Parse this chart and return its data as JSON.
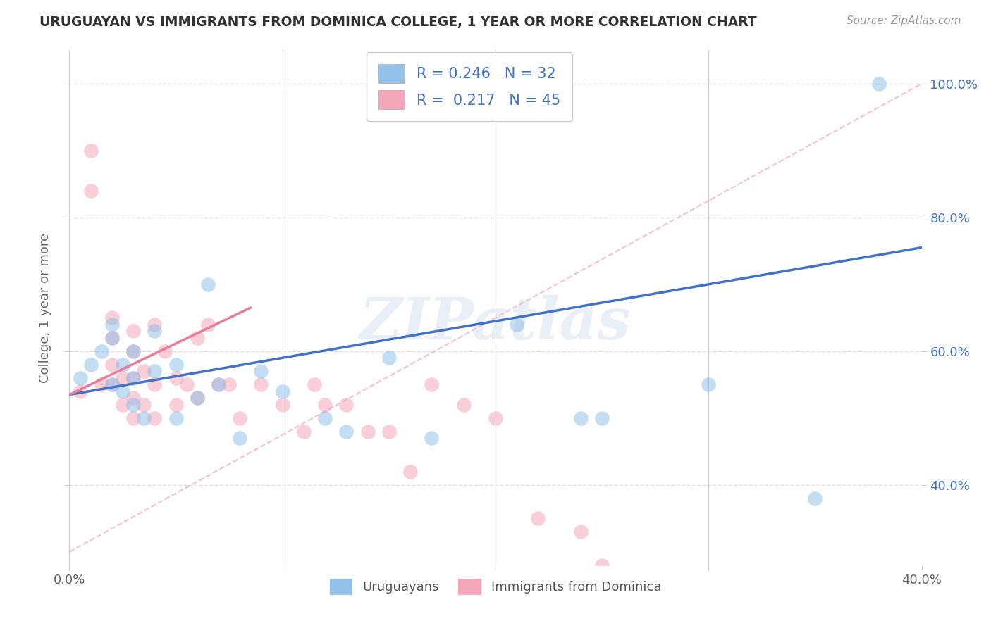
{
  "title": "URUGUAYAN VS IMMIGRANTS FROM DOMINICA COLLEGE, 1 YEAR OR MORE CORRELATION CHART",
  "source_text": "Source: ZipAtlas.com",
  "ylabel": "College, 1 year or more",
  "xlabel": "",
  "xlim": [
    0.0,
    0.4
  ],
  "ylim": [
    0.28,
    1.05
  ],
  "xticks": [
    0.0,
    0.1,
    0.2,
    0.3,
    0.4
  ],
  "xticklabels": [
    "0.0%",
    "",
    "",
    "",
    "40.0%"
  ],
  "yticks": [
    0.4,
    0.6,
    0.8,
    1.0
  ],
  "yticklabels_left": [
    "40.0%",
    "60.0%",
    "80.0%",
    "100.0%"
  ],
  "yticklabels_right": [
    "40.0%",
    "60.0%",
    "80.0%",
    "100.0%"
  ],
  "watermark": "ZIPatlas",
  "legend_blue_label": "Uruguayans",
  "legend_pink_label": "Immigrants from Dominica",
  "legend_blue_R": "0.246",
  "legend_blue_N": "32",
  "legend_pink_R": "0.217",
  "legend_pink_N": "45",
  "blue_color": "#92C1E9",
  "pink_color": "#F4A7B9",
  "blue_line_color": "#4472C4",
  "pink_line_color": "#E87D9A",
  "diag_line_color": "#F4A7B9",
  "background_color": "#FFFFFF",
  "blue_scatter_x": [
    0.005,
    0.01,
    0.015,
    0.02,
    0.02,
    0.02,
    0.025,
    0.025,
    0.03,
    0.03,
    0.03,
    0.035,
    0.04,
    0.04,
    0.05,
    0.05,
    0.06,
    0.065,
    0.07,
    0.08,
    0.09,
    0.1,
    0.12,
    0.13,
    0.15,
    0.17,
    0.21,
    0.24,
    0.25,
    0.3,
    0.35,
    0.38
  ],
  "blue_scatter_y": [
    0.56,
    0.58,
    0.6,
    0.55,
    0.62,
    0.64,
    0.54,
    0.58,
    0.52,
    0.56,
    0.6,
    0.5,
    0.57,
    0.63,
    0.5,
    0.58,
    0.53,
    0.7,
    0.55,
    0.47,
    0.57,
    0.54,
    0.5,
    0.48,
    0.59,
    0.47,
    0.64,
    0.5,
    0.5,
    0.55,
    0.38,
    1.0
  ],
  "pink_scatter_x": [
    0.005,
    0.01,
    0.01,
    0.015,
    0.02,
    0.02,
    0.02,
    0.02,
    0.025,
    0.025,
    0.03,
    0.03,
    0.03,
    0.03,
    0.03,
    0.035,
    0.035,
    0.04,
    0.04,
    0.04,
    0.045,
    0.05,
    0.05,
    0.055,
    0.06,
    0.06,
    0.065,
    0.07,
    0.075,
    0.08,
    0.09,
    0.1,
    0.11,
    0.115,
    0.12,
    0.13,
    0.14,
    0.15,
    0.16,
    0.17,
    0.185,
    0.2,
    0.22,
    0.24,
    0.25
  ],
  "pink_scatter_y": [
    0.54,
    0.84,
    0.9,
    0.55,
    0.55,
    0.58,
    0.62,
    0.65,
    0.52,
    0.56,
    0.5,
    0.53,
    0.56,
    0.6,
    0.63,
    0.52,
    0.57,
    0.5,
    0.55,
    0.64,
    0.6,
    0.52,
    0.56,
    0.55,
    0.53,
    0.62,
    0.64,
    0.55,
    0.55,
    0.5,
    0.55,
    0.52,
    0.48,
    0.55,
    0.52,
    0.52,
    0.48,
    0.48,
    0.42,
    0.55,
    0.52,
    0.5,
    0.35,
    0.33,
    0.28
  ],
  "blue_line_x": [
    0.0,
    0.4
  ],
  "blue_line_y": [
    0.535,
    0.755
  ],
  "pink_line_x": [
    0.0,
    0.085
  ],
  "pink_line_y": [
    0.535,
    0.665
  ],
  "diag_line_x": [
    0.0,
    0.4
  ],
  "diag_line_y": [
    0.3,
    1.0
  ]
}
